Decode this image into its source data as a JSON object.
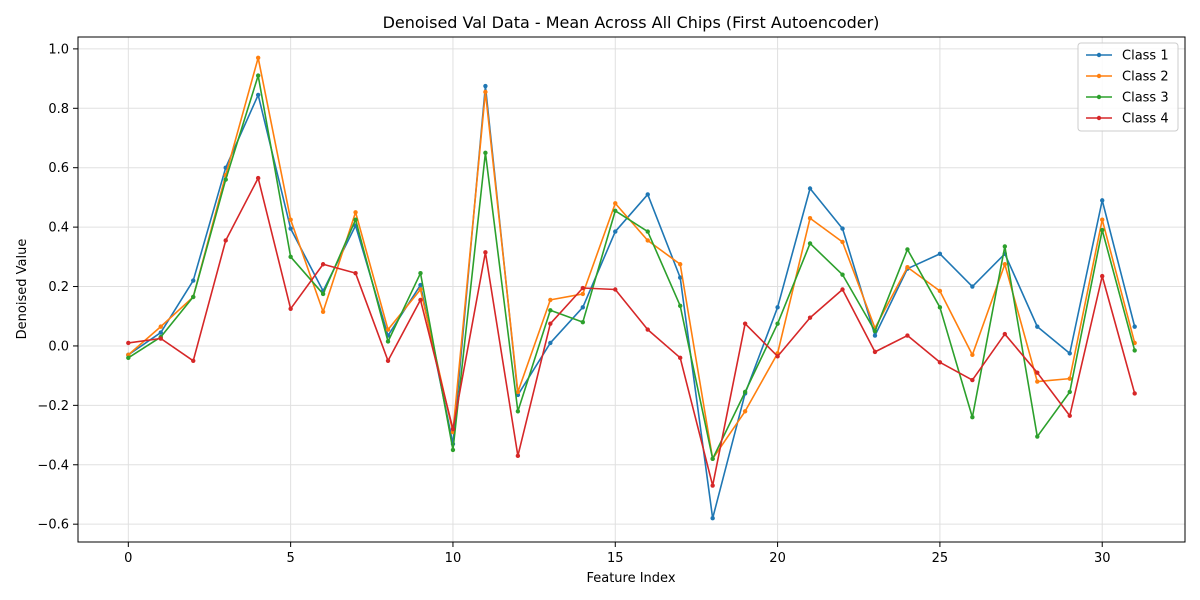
{
  "chart_data": {
    "type": "line",
    "title": "Denoised Val Data - Mean Across All Chips (First Autoencoder)",
    "xlabel": "Feature Index",
    "ylabel": "Denoised Value",
    "xlim": [
      -1.55,
      32.55
    ],
    "ylim": [
      -0.66,
      1.04
    ],
    "xticks": [
      0,
      5,
      10,
      15,
      20,
      25,
      30
    ],
    "yticks": [
      -0.6,
      -0.4,
      -0.2,
      0.0,
      0.2,
      0.4,
      0.6,
      0.8,
      1.0
    ],
    "ytick_labels": [
      "−0.6",
      "−0.4",
      "−0.2",
      "0.0",
      "0.2",
      "0.4",
      "0.6",
      "0.8",
      "1.0"
    ],
    "grid": true,
    "legend_position": "top-right",
    "x": [
      0,
      1,
      2,
      3,
      4,
      5,
      6,
      7,
      8,
      9,
      10,
      11,
      12,
      13,
      14,
      15,
      16,
      17,
      18,
      19,
      20,
      21,
      22,
      23,
      24,
      25,
      26,
      27,
      28,
      29,
      30,
      31
    ],
    "series": [
      {
        "name": "Class 1",
        "color": "#1f77b4",
        "values": [
          -0.03,
          0.045,
          0.22,
          0.6,
          0.845,
          0.395,
          0.185,
          0.405,
          0.035,
          0.205,
          -0.33,
          0.875,
          -0.165,
          0.01,
          0.13,
          0.385,
          0.51,
          0.23,
          -0.58,
          -0.16,
          0.13,
          0.53,
          0.395,
          0.035,
          0.26,
          0.31,
          0.2,
          0.31,
          0.065,
          -0.025,
          0.49,
          0.065
        ]
      },
      {
        "name": "Class 2",
        "color": "#ff7f0e",
        "values": [
          -0.03,
          0.065,
          0.165,
          0.575,
          0.97,
          0.425,
          0.115,
          0.45,
          0.055,
          0.19,
          -0.29,
          0.855,
          -0.155,
          0.155,
          0.175,
          0.48,
          0.355,
          0.275,
          -0.38,
          -0.22,
          -0.025,
          0.43,
          0.35,
          0.06,
          0.265,
          0.185,
          -0.03,
          0.275,
          -0.12,
          -0.11,
          0.425,
          0.01
        ]
      },
      {
        "name": "Class 3",
        "color": "#2ca02c",
        "values": [
          -0.04,
          0.03,
          0.165,
          0.56,
          0.91,
          0.3,
          0.175,
          0.425,
          0.015,
          0.245,
          -0.35,
          0.65,
          -0.22,
          0.12,
          0.08,
          0.455,
          0.385,
          0.135,
          -0.38,
          -0.155,
          0.075,
          0.345,
          0.24,
          0.05,
          0.325,
          0.13,
          -0.24,
          0.335,
          -0.305,
          -0.155,
          0.39,
          -0.015
        ]
      },
      {
        "name": "Class 4",
        "color": "#d62728",
        "values": [
          0.01,
          0.025,
          -0.05,
          0.355,
          0.565,
          0.125,
          0.275,
          0.245,
          -0.05,
          0.155,
          -0.28,
          0.315,
          -0.37,
          0.075,
          0.195,
          0.19,
          0.055,
          -0.04,
          -0.47,
          0.075,
          -0.035,
          0.095,
          0.19,
          -0.02,
          0.035,
          -0.055,
          -0.115,
          0.04,
          -0.09,
          -0.235,
          0.235,
          -0.16
        ]
      }
    ]
  }
}
